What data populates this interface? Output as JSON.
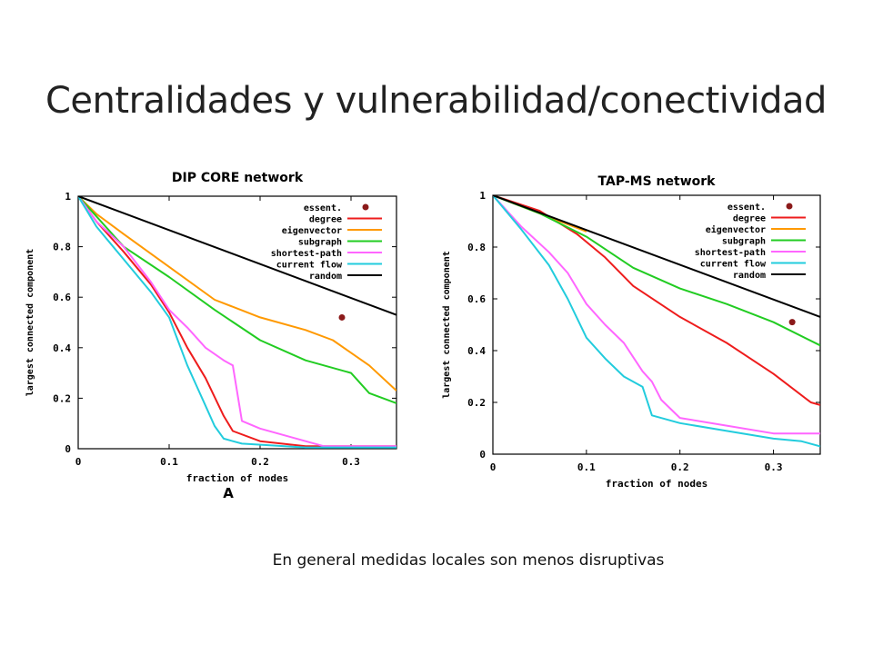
{
  "slide": {
    "title": "Centralidades y vulnerabilidad/conectividad",
    "caption": "En general medidas locales son menos disruptivas"
  },
  "chart_data": [
    {
      "type": "line",
      "title": "DIP CORE network",
      "panel_label": "A",
      "xlabel": "fraction of nodes",
      "ylabel": "largest connected component",
      "xlim": [
        0,
        0.35
      ],
      "ylim": [
        0,
        1
      ],
      "xticks": [
        "0",
        "0.1",
        "0.2",
        "0.3"
      ],
      "yticks": [
        "0",
        "0.2",
        "0.4",
        "0.6",
        "0.8",
        "1"
      ],
      "grid": false,
      "legend_position": "top-right",
      "essent_marker": {
        "label": "essent.",
        "x": 0.29,
        "y": 0.52,
        "color": "#8b1a1a"
      },
      "series": [
        {
          "name": "degree",
          "color": "#ee1c1c",
          "x": [
            0,
            0.02,
            0.05,
            0.08,
            0.1,
            0.12,
            0.14,
            0.16,
            0.17,
            0.2,
            0.25,
            0.3,
            0.35
          ],
          "y": [
            1,
            0.9,
            0.78,
            0.65,
            0.54,
            0.4,
            0.28,
            0.13,
            0.07,
            0.03,
            0.01,
            0.01,
            0.01
          ]
        },
        {
          "name": "eigenvector",
          "color": "#ff9900",
          "x": [
            0,
            0.02,
            0.05,
            0.1,
            0.15,
            0.2,
            0.25,
            0.28,
            0.32,
            0.35
          ],
          "y": [
            1,
            0.93,
            0.85,
            0.72,
            0.59,
            0.52,
            0.47,
            0.43,
            0.33,
            0.23
          ]
        },
        {
          "name": "subgraph",
          "color": "#22cc22",
          "x": [
            0,
            0.02,
            0.05,
            0.1,
            0.15,
            0.2,
            0.25,
            0.3,
            0.32,
            0.35
          ],
          "y": [
            1,
            0.92,
            0.8,
            0.68,
            0.55,
            0.43,
            0.35,
            0.3,
            0.22,
            0.18
          ]
        },
        {
          "name": "shortest-path",
          "color": "#ff66ff",
          "x": [
            0,
            0.02,
            0.05,
            0.08,
            0.1,
            0.12,
            0.14,
            0.16,
            0.17,
            0.18,
            0.2,
            0.25,
            0.27,
            0.3,
            0.35
          ],
          "y": [
            1,
            0.9,
            0.8,
            0.66,
            0.55,
            0.48,
            0.4,
            0.35,
            0.33,
            0.11,
            0.08,
            0.03,
            0.01,
            0.01,
            0.01
          ]
        },
        {
          "name": "current flow",
          "color": "#22ccdd",
          "x": [
            0,
            0.02,
            0.05,
            0.08,
            0.1,
            0.12,
            0.13,
            0.14,
            0.15,
            0.16,
            0.18,
            0.25,
            0.35
          ],
          "y": [
            1,
            0.88,
            0.75,
            0.62,
            0.52,
            0.33,
            0.25,
            0.17,
            0.09,
            0.04,
            0.02,
            0.005,
            0.005
          ]
        },
        {
          "name": "random",
          "color": "#000000",
          "x": [
            0,
            0.35
          ],
          "y": [
            1,
            0.53
          ]
        }
      ]
    },
    {
      "type": "line",
      "title": "TAP-MS network",
      "xlabel": "fraction of nodes",
      "ylabel": "largest connected component",
      "xlim": [
        0,
        0.35
      ],
      "ylim": [
        0,
        1
      ],
      "xticks": [
        "0",
        "0.1",
        "0.2",
        "0.3"
      ],
      "yticks": [
        "0",
        "0.2",
        "0.4",
        "0.6",
        "0.8",
        "1"
      ],
      "grid": false,
      "legend_position": "top-right",
      "essent_marker": {
        "label": "essent.",
        "x": 0.32,
        "y": 0.51,
        "color": "#8b1a1a"
      },
      "series": [
        {
          "name": "degree",
          "color": "#ee1c1c",
          "x": [
            0,
            0.05,
            0.09,
            0.12,
            0.15,
            0.2,
            0.25,
            0.3,
            0.34,
            0.35
          ],
          "y": [
            1,
            0.94,
            0.85,
            0.76,
            0.65,
            0.53,
            0.43,
            0.31,
            0.2,
            0.19
          ]
        },
        {
          "name": "eigenvector",
          "color": "#ff9900",
          "x": [
            0,
            0.05,
            0.1
          ],
          "y": [
            1,
            0.93,
            0.86
          ]
        },
        {
          "name": "subgraph",
          "color": "#22cc22",
          "x": [
            0,
            0.05,
            0.1,
            0.15,
            0.2,
            0.25,
            0.3,
            0.35
          ],
          "y": [
            1,
            0.93,
            0.84,
            0.72,
            0.64,
            0.58,
            0.51,
            0.42
          ]
        },
        {
          "name": "shortest-path",
          "color": "#ff66ff",
          "x": [
            0,
            0.03,
            0.06,
            0.08,
            0.1,
            0.12,
            0.14,
            0.16,
            0.17,
            0.18,
            0.2,
            0.25,
            0.3,
            0.35
          ],
          "y": [
            1,
            0.88,
            0.78,
            0.7,
            0.58,
            0.5,
            0.43,
            0.32,
            0.28,
            0.21,
            0.14,
            0.11,
            0.08,
            0.08
          ]
        },
        {
          "name": "current flow",
          "color": "#22ccdd",
          "x": [
            0,
            0.03,
            0.06,
            0.08,
            0.1,
            0.12,
            0.14,
            0.16,
            0.17,
            0.2,
            0.25,
            0.3,
            0.33,
            0.35
          ],
          "y": [
            1,
            0.87,
            0.73,
            0.6,
            0.45,
            0.37,
            0.3,
            0.26,
            0.15,
            0.12,
            0.09,
            0.06,
            0.05,
            0.03
          ]
        },
        {
          "name": "random",
          "color": "#000000",
          "x": [
            0,
            0.35
          ],
          "y": [
            1,
            0.53
          ]
        }
      ]
    }
  ]
}
